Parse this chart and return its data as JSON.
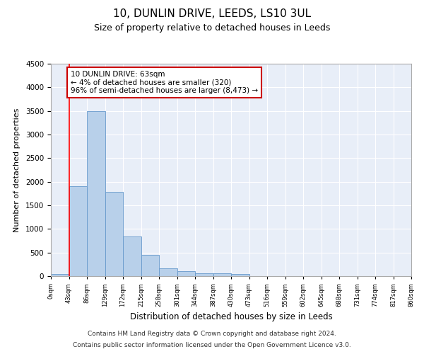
{
  "title1": "10, DUNLIN DRIVE, LEEDS, LS10 3UL",
  "title2": "Size of property relative to detached houses in Leeds",
  "xlabel": "Distribution of detached houses by size in Leeds",
  "ylabel": "Number of detached properties",
  "bin_labels": [
    "0sqm",
    "43sqm",
    "86sqm",
    "129sqm",
    "172sqm",
    "215sqm",
    "258sqm",
    "301sqm",
    "344sqm",
    "387sqm",
    "430sqm",
    "473sqm",
    "516sqm",
    "559sqm",
    "602sqm",
    "645sqm",
    "688sqm",
    "731sqm",
    "774sqm",
    "817sqm",
    "860sqm"
  ],
  "bar_heights": [
    50,
    1900,
    3500,
    1780,
    840,
    450,
    170,
    100,
    65,
    55,
    50,
    0,
    0,
    0,
    0,
    0,
    0,
    0,
    0,
    0
  ],
  "bar_color": "#b8d0ea",
  "bar_edge_color": "#6699cc",
  "background_color": "#e8eef8",
  "grid_color": "#ffffff",
  "red_line_x": 1.0,
  "annotation_text": "10 DUNLIN DRIVE: 63sqm\n← 4% of detached houses are smaller (320)\n96% of semi-detached houses are larger (8,473) →",
  "annotation_box_color": "#ffffff",
  "annotation_box_edge": "#cc0000",
  "ylim": [
    0,
    4500
  ],
  "yticks": [
    0,
    500,
    1000,
    1500,
    2000,
    2500,
    3000,
    3500,
    4000,
    4500
  ],
  "footnote1": "Contains HM Land Registry data © Crown copyright and database right 2024.",
  "footnote2": "Contains public sector information licensed under the Open Government Licence v3.0."
}
